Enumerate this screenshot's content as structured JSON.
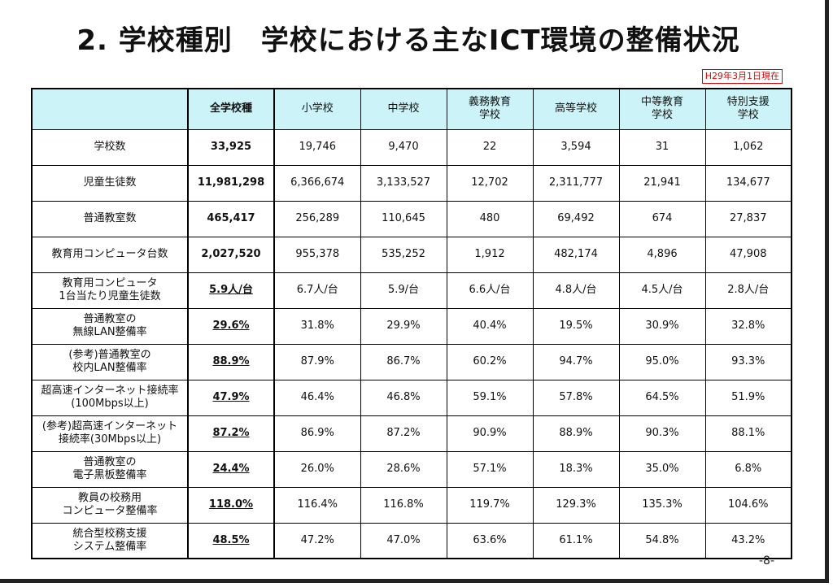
{
  "title": "2. 学校種別　学校における主なICT環境の整備状況",
  "date_badge": "H29年3月1日現在",
  "page_number": "-8-",
  "table": {
    "columns": [
      "",
      "全学校種",
      "小学校",
      "中学校",
      "義務教育\n学校",
      "高等学校",
      "中等教育\n学校",
      "特別支援\n学校"
    ],
    "rows": [
      {
        "label": "学校数",
        "total": "33,925",
        "underline": false,
        "values": [
          "19,746",
          "9,470",
          "22",
          "3,594",
          "31",
          "1,062"
        ]
      },
      {
        "label": "児童生徒数",
        "total": "11,981,298",
        "underline": false,
        "values": [
          "6,366,674",
          "3,133,527",
          "12,702",
          "2,311,777",
          "21,941",
          "134,677"
        ]
      },
      {
        "label": "普通教室数",
        "total": "465,417",
        "underline": false,
        "values": [
          "256,289",
          "110,645",
          "480",
          "69,492",
          "674",
          "27,837"
        ]
      },
      {
        "label": "教育用コンピュータ台数",
        "total": "2,027,520",
        "underline": false,
        "values": [
          "955,378",
          "535,252",
          "1,912",
          "482,174",
          "4,896",
          "47,908"
        ]
      },
      {
        "label": "教育用コンピュータ\n1台当たり児童生徒数",
        "total": "5.9人/台",
        "underline": true,
        "values": [
          "6.7人/台",
          "5.9/台",
          "6.6人/台",
          "4.8人/台",
          "4.5人/台",
          "2.8人/台"
        ]
      },
      {
        "label": "普通教室の\n無線LAN整備率",
        "total": "29.6%",
        "underline": true,
        "values": [
          "31.8%",
          "29.9%",
          "40.4%",
          "19.5%",
          "30.9%",
          "32.8%"
        ]
      },
      {
        "label": "(参考)普通教室の\n校内LAN整備率",
        "total": "88.9%",
        "underline": true,
        "values": [
          "87.9%",
          "86.7%",
          "60.2%",
          "94.7%",
          "95.0%",
          "93.3%"
        ]
      },
      {
        "label": "超高速インターネット接続率\n(100Mbps以上)",
        "total": "47.9%",
        "underline": true,
        "values": [
          "46.4%",
          "46.8%",
          "59.1%",
          "57.8%",
          "64.5%",
          "51.9%"
        ]
      },
      {
        "label": "(参考)超高速インターネット\n接続率(30Mbps以上)",
        "total": "87.2%",
        "underline": true,
        "values": [
          "86.9%",
          "87.2%",
          "90.9%",
          "88.9%",
          "90.3%",
          "88.1%"
        ]
      },
      {
        "label": "普通教室の\n電子黒板整備率",
        "total": "24.4%",
        "underline": true,
        "values": [
          "26.0%",
          "28.6%",
          "57.1%",
          "18.3%",
          "35.0%",
          "6.8%"
        ]
      },
      {
        "label": "教員の校務用\nコンピュータ整備率",
        "total": "118.0%",
        "underline": true,
        "values": [
          "116.4%",
          "116.8%",
          "119.7%",
          "129.3%",
          "135.3%",
          "104.6%"
        ]
      },
      {
        "label": "統合型校務支援\nシステム整備率",
        "total": "48.5%",
        "underline": true,
        "values": [
          "47.2%",
          "47.0%",
          "63.6%",
          "61.1%",
          "54.8%",
          "43.2%"
        ]
      }
    ]
  },
  "colors": {
    "header_bg": "#ccf4f8",
    "badge_red": "#e00000"
  }
}
